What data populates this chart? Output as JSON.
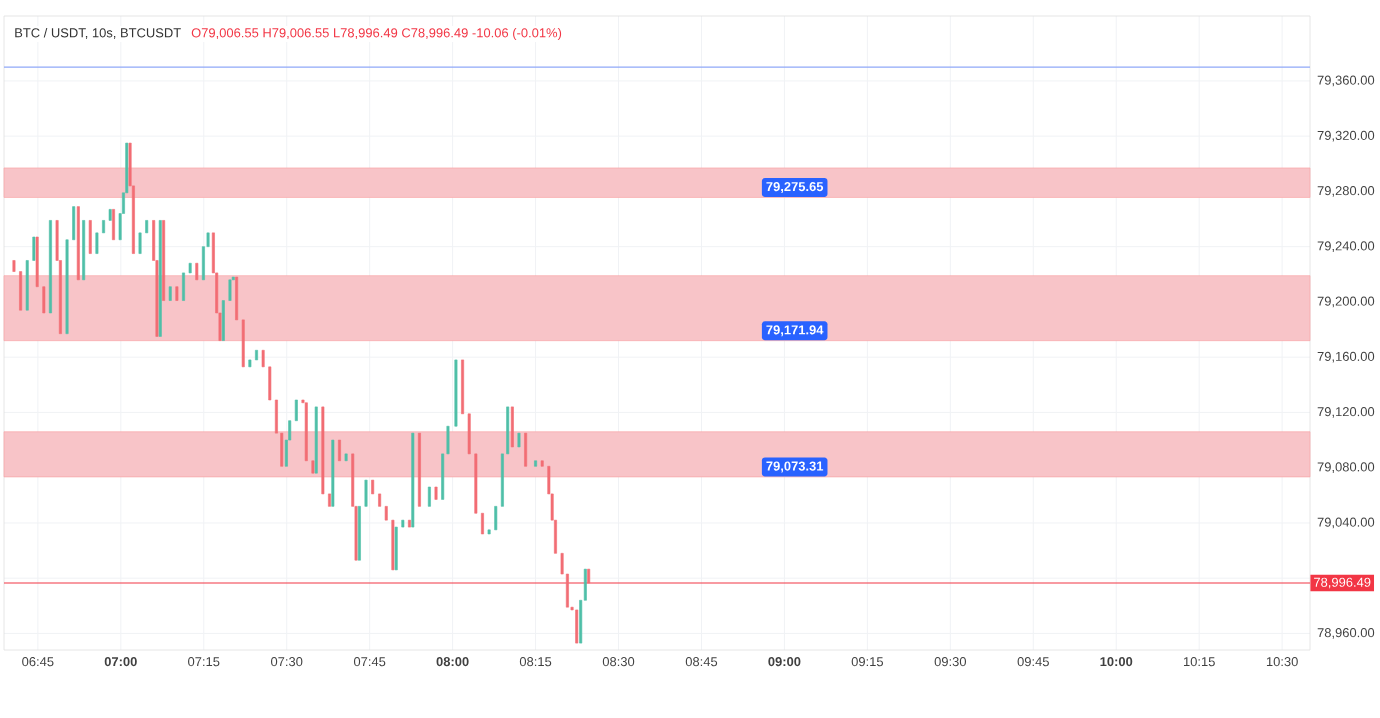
{
  "chart_data": {
    "type": "candlestick",
    "title": "BTC / USDT, 10s, BTCUSDT",
    "subtitle": "O79,006.55 H79,006.55 L78,996.49 C78,996.49 -10.06 (-0.01%)",
    "x": [
      6.678,
      6.698,
      6.718,
      6.738,
      6.748,
      6.768,
      6.788,
      6.808,
      6.818,
      6.838,
      6.858,
      6.872,
      6.888,
      6.908,
      6.928,
      6.948,
      6.968,
      6.978,
      6.998,
      7.008,
      7.018,
      7.028,
      7.038,
      7.058,
      7.078,
      7.099,
      7.109,
      7.119,
      7.129,
      7.149,
      7.169,
      7.189,
      7.209,
      7.229,
      7.249,
      7.263,
      7.279,
      7.289,
      7.299,
      7.309,
      7.329,
      7.339,
      7.349,
      7.369,
      7.389,
      7.409,
      7.429,
      7.449,
      7.469,
      7.485,
      7.499,
      7.509,
      7.529,
      7.549,
      7.559,
      7.579,
      7.589,
      7.609,
      7.629,
      7.639,
      7.659,
      7.679,
      7.699,
      7.709,
      7.719,
      7.739,
      7.759,
      7.78,
      7.8,
      7.82,
      7.83,
      7.85,
      7.87,
      7.88,
      7.9,
      7.93,
      7.95,
      7.97,
      7.986,
      8.01,
      8.03,
      8.05,
      8.07,
      8.09,
      8.11,
      8.13,
      8.15,
      8.166,
      8.18,
      8.2,
      8.22,
      8.25,
      8.27,
      8.29,
      8.3,
      8.31,
      8.33,
      8.346,
      8.36,
      8.374,
      8.386,
      8.4,
      8.41
    ],
    "ohlc": [
      [
        79230,
        79230,
        79222,
        79222
      ],
      [
        79222,
        79222,
        79194,
        79194
      ],
      [
        79194,
        79230,
        79194,
        79230
      ],
      [
        79230,
        79247,
        79230,
        79247
      ],
      [
        79247,
        79247,
        79211,
        79211
      ],
      [
        79211,
        79211,
        79192,
        79192
      ],
      [
        79192,
        79259,
        79192,
        79259
      ],
      [
        79259,
        79259,
        79230,
        79230
      ],
      [
        79230,
        79230,
        79177,
        79177
      ],
      [
        79177,
        79245,
        79177,
        79245
      ],
      [
        79245,
        79269,
        79245,
        79269
      ],
      [
        79269,
        79269,
        79216,
        79216
      ],
      [
        79216,
        79259,
        79216,
        79259
      ],
      [
        79259,
        79259,
        79235,
        79235
      ],
      [
        79235,
        79250,
        79235,
        79250
      ],
      [
        79250,
        79259,
        79250,
        79259
      ],
      [
        79259,
        79267,
        79259,
        79267
      ],
      [
        79267,
        79267,
        79245,
        79245
      ],
      [
        79245,
        79264,
        79245,
        79264
      ],
      [
        79264,
        79279,
        79264,
        79279
      ],
      [
        79279,
        79315,
        79279,
        79315
      ],
      [
        79315,
        79315,
        79284,
        79284
      ],
      [
        79284,
        79284,
        79235,
        79235
      ],
      [
        79235,
        79250,
        79235,
        79250
      ],
      [
        79250,
        79259,
        79250,
        79259
      ],
      [
        79259,
        79259,
        79230,
        79230
      ],
      [
        79230,
        79230,
        79175,
        79175
      ],
      [
        79175,
        79259,
        79175,
        79259
      ],
      [
        79259,
        79259,
        79201,
        79201
      ],
      [
        79201,
        79211,
        79201,
        79211
      ],
      [
        79211,
        79211,
        79201,
        79201
      ],
      [
        79201,
        79221,
        79201,
        79221
      ],
      [
        79221,
        79228,
        79221,
        79228
      ],
      [
        79228,
        79228,
        79216,
        79216
      ],
      [
        79216,
        79240,
        79216,
        79240
      ],
      [
        79240,
        79250,
        79240,
        79250
      ],
      [
        79250,
        79250,
        79221,
        79221
      ],
      [
        79221,
        79221,
        79192,
        79192
      ],
      [
        79192,
        79192,
        79172,
        79172
      ],
      [
        79172,
        79201,
        79172,
        79201
      ],
      [
        79201,
        79216,
        79201,
        79216
      ],
      [
        79216,
        79218,
        79216,
        79218
      ],
      [
        79218,
        79218,
        79187,
        79187
      ],
      [
        79187,
        79187,
        79153,
        79153
      ],
      [
        79153,
        79158,
        79153,
        79158
      ],
      [
        79158,
        79165,
        79158,
        79165
      ],
      [
        79165,
        79165,
        79153,
        79153
      ],
      [
        79153,
        79153,
        79129,
        79129
      ],
      [
        79129,
        79129,
        79105,
        79105
      ],
      [
        79105,
        79105,
        79081,
        79081
      ],
      [
        79081,
        79100,
        79081,
        79100
      ],
      [
        79100,
        79114,
        79100,
        79114
      ],
      [
        79114,
        79129,
        79114,
        79129
      ],
      [
        79129,
        79129,
        79127,
        79127
      ],
      [
        79127,
        79127,
        79085,
        79085
      ],
      [
        79085,
        79085,
        79076,
        79076
      ],
      [
        79076,
        79124,
        79076,
        79124
      ],
      [
        79124,
        79124,
        79061,
        79061
      ],
      [
        79061,
        79061,
        79052,
        79052
      ],
      [
        79052,
        79100,
        79052,
        79100
      ],
      [
        79100,
        79100,
        79085,
        79085
      ],
      [
        79085,
        79090,
        79085,
        79090
      ],
      [
        79090,
        79090,
        79052,
        79052
      ],
      [
        79052,
        79052,
        79013,
        79013
      ],
      [
        79013,
        79052,
        79013,
        79052
      ],
      [
        79052,
        79071,
        79052,
        79071
      ],
      [
        79071,
        79071,
        79061,
        79061
      ],
      [
        79061,
        79061,
        79052,
        79052
      ],
      [
        79052,
        79052,
        79042,
        79042
      ],
      [
        79042,
        79042,
        79006,
        79006
      ],
      [
        79006,
        79037,
        79006,
        79037
      ],
      [
        79037,
        79042,
        79037,
        79042
      ],
      [
        79042,
        79042,
        79037,
        79037
      ],
      [
        79037,
        79105,
        79037,
        79105
      ],
      [
        79105,
        79105,
        79052,
        79052
      ],
      [
        79052,
        79066,
        79052,
        79066
      ],
      [
        79066,
        79066,
        79057,
        79057
      ],
      [
        79057,
        79090,
        79057,
        79090
      ],
      [
        79090,
        79110,
        79090,
        79110
      ],
      [
        79110,
        79158,
        79110,
        79158
      ],
      [
        79158,
        79158,
        79119,
        79119
      ],
      [
        79119,
        79119,
        79090,
        79090
      ],
      [
        79090,
        79090,
        79047,
        79047
      ],
      [
        79047,
        79047,
        79032,
        79032
      ],
      [
        79032,
        79035,
        79032,
        79035
      ],
      [
        79035,
        79052,
        79035,
        79052
      ],
      [
        79052,
        79090,
        79052,
        79090
      ],
      [
        79090,
        79124,
        79090,
        79124
      ],
      [
        79124,
        79124,
        79095,
        79095
      ],
      [
        79095,
        79105,
        79095,
        79105
      ],
      [
        79105,
        79105,
        79081,
        79081
      ],
      [
        79081,
        79085,
        79081,
        79085
      ],
      [
        79085,
        79085,
        79081,
        79081
      ],
      [
        79081,
        79081,
        79061,
        79061
      ],
      [
        79061,
        79061,
        79042,
        79042
      ],
      [
        79042,
        79042,
        79018,
        79018
      ],
      [
        79018,
        79018,
        79003,
        79003
      ],
      [
        79003,
        79003,
        78979,
        78979
      ],
      [
        78979,
        78979,
        78977,
        78977
      ],
      [
        78977,
        78977,
        78953,
        78953
      ],
      [
        78953,
        78984,
        78953,
        78984
      ],
      [
        78984,
        79006.55,
        78984,
        79006.55
      ],
      [
        79006.55,
        79006.55,
        78996.49,
        78996.49
      ]
    ],
    "colors": [
      "#f26d74",
      "#f26d74",
      "#4fbfa8",
      "#4fbfa8",
      "#f26d74",
      "#f26d74",
      "#4fbfa8",
      "#f26d74",
      "#f26d74",
      "#4fbfa8",
      "#4fbfa8",
      "#f26d74",
      "#4fbfa8",
      "#f26d74",
      "#4fbfa8",
      "#4fbfa8",
      "#4fbfa8",
      "#f26d74",
      "#4fbfa8",
      "#4fbfa8",
      "#4fbfa8",
      "#f26d74",
      "#f26d74",
      "#4fbfa8",
      "#4fbfa8",
      "#f26d74",
      "#f26d74",
      "#4fbfa8",
      "#f26d74",
      "#4fbfa8",
      "#f26d74",
      "#4fbfa8",
      "#4fbfa8",
      "#f26d74",
      "#4fbfa8",
      "#4fbfa8",
      "#f26d74",
      "#f26d74",
      "#f26d74",
      "#4fbfa8",
      "#4fbfa8",
      "#4fbfa8",
      "#f26d74",
      "#f26d74",
      "#4fbfa8",
      "#4fbfa8",
      "#f26d74",
      "#f26d74",
      "#f26d74",
      "#f26d74",
      "#4fbfa8",
      "#4fbfa8",
      "#4fbfa8",
      "#f26d74",
      "#f26d74",
      "#f26d74",
      "#4fbfa8",
      "#f26d74",
      "#f26d74",
      "#4fbfa8",
      "#f26d74",
      "#4fbfa8",
      "#f26d74",
      "#f26d74",
      "#4fbfa8",
      "#4fbfa8",
      "#f26d74",
      "#f26d74",
      "#f26d74",
      "#f26d74",
      "#4fbfa8",
      "#4fbfa8",
      "#f26d74",
      "#4fbfa8",
      "#f26d74",
      "#4fbfa8",
      "#f26d74",
      "#4fbfa8",
      "#4fbfa8",
      "#4fbfa8",
      "#f26d74",
      "#f26d74",
      "#f26d74",
      "#f26d74",
      "#4fbfa8",
      "#4fbfa8",
      "#4fbfa8",
      "#4fbfa8",
      "#f26d74",
      "#4fbfa8",
      "#f26d74",
      "#4fbfa8",
      "#f26d74",
      "#f26d74",
      "#f26d74",
      "#f26d74",
      "#f26d74",
      "#f26d74",
      "#f26d74",
      "#f26d74",
      "#4fbfa8",
      "#4fbfa8",
      "#f26d74"
    ],
    "xlim": [
      6.648,
      10.584
    ],
    "xticks": [
      {
        "value": 6.75,
        "label": "06:45"
      },
      {
        "value": 7.0,
        "label": "07:00"
      },
      {
        "value": 7.25,
        "label": "07:15"
      },
      {
        "value": 7.5,
        "label": "07:30"
      },
      {
        "value": 7.75,
        "label": "07:45"
      },
      {
        "value": 8.0,
        "label": "08:00"
      },
      {
        "value": 8.25,
        "label": "08:15"
      },
      {
        "value": 8.5,
        "label": "08:30"
      },
      {
        "value": 8.75,
        "label": "08:45"
      },
      {
        "value": 9.0,
        "label": "09:00"
      },
      {
        "value": 9.25,
        "label": "09:15"
      },
      {
        "value": 9.5,
        "label": "09:30"
      },
      {
        "value": 9.75,
        "label": "09:45"
      },
      {
        "value": 10.0,
        "label": "10:00"
      },
      {
        "value": 10.25,
        "label": "10:15"
      },
      {
        "value": 10.5,
        "label": "10:30"
      }
    ],
    "ylim": [
      78948,
      79407
    ],
    "yticks": [
      {
        "value": 78960,
        "label": "78,960.00"
      },
      {
        "value": 79000,
        "label": null
      },
      {
        "value": 79040,
        "label": "79,040.00"
      },
      {
        "value": 79080,
        "label": "79,080.00"
      },
      {
        "value": 79120,
        "label": "79,120.00"
      },
      {
        "value": 79160,
        "label": "79,160.00"
      },
      {
        "value": 79200,
        "label": "79,200.00"
      },
      {
        "value": 79240,
        "label": "79,240.00"
      },
      {
        "value": 79280,
        "label": "79,280.00"
      },
      {
        "value": 79320,
        "label": "79,320.00"
      },
      {
        "value": 79360,
        "label": "79,360.00"
      }
    ],
    "grid": true,
    "bands": [
      {
        "axis": "y",
        "from": 79275.65,
        "to": 79297,
        "label": "79,275.65",
        "color": "#f8c4c8"
      },
      {
        "axis": "y",
        "from": 79171.94,
        "to": 79219,
        "label": "79,171.94",
        "color": "#f8c4c8"
      },
      {
        "axis": "y",
        "from": 79073.31,
        "to": 79106,
        "label": "79,073.31",
        "color": "#f8c4c8"
      }
    ],
    "ref_lines": [
      {
        "axis": "y",
        "value": 78996.49,
        "label": "78,996.49",
        "color": "#f23645"
      },
      {
        "axis": "y",
        "value": 79370,
        "color": "#8fa8f8"
      }
    ]
  }
}
